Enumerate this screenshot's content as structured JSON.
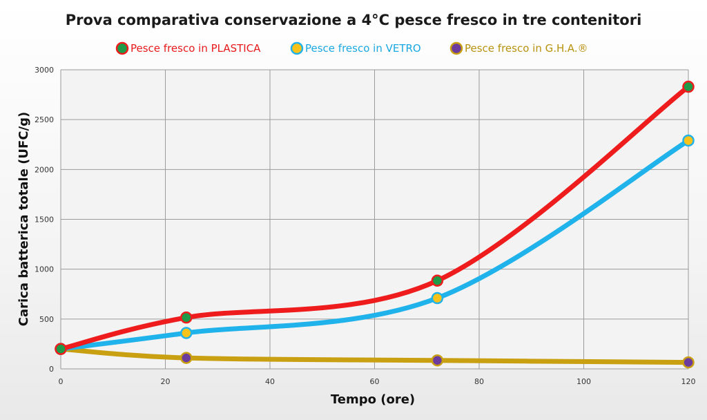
{
  "chart_data": {
    "type": "line",
    "title": "Prova comparativa conservazione a 4°C pesce fresco in tre contenitori",
    "xlabel": "Tempo (ore)",
    "ylabel": "Carica batterica totale (UFC/g)",
    "xlim": [
      0,
      120
    ],
    "ylim": [
      0,
      3000
    ],
    "xticks": [
      0,
      20,
      40,
      60,
      80,
      100,
      120
    ],
    "yticks": [
      0,
      500,
      1000,
      1500,
      2000,
      2500,
      3000
    ],
    "grid": true,
    "smooth": true,
    "legend_position": "top",
    "x": [
      0,
      24,
      72,
      120
    ],
    "series": [
      {
        "name": "Pesce fresco in PLASTICA",
        "values": [
          200,
          515,
          885,
          2830
        ],
        "line_color": "#ee1c1c",
        "marker_color": "#1f9a48",
        "text_color": "#e8191b"
      },
      {
        "name": "Pesce fresco in VETRO",
        "values": [
          200,
          360,
          710,
          2290
        ],
        "line_color": "#20b2ea",
        "marker_color": "#f7c21a",
        "text_color": "#1aa8e2"
      },
      {
        "name": "Pesce fresco in G.H.A.®",
        "values": [
          200,
          110,
          85,
          65
        ],
        "line_color": "#c9a012",
        "marker_color": "#6b3b9e",
        "text_color": "#b8920f"
      }
    ]
  }
}
